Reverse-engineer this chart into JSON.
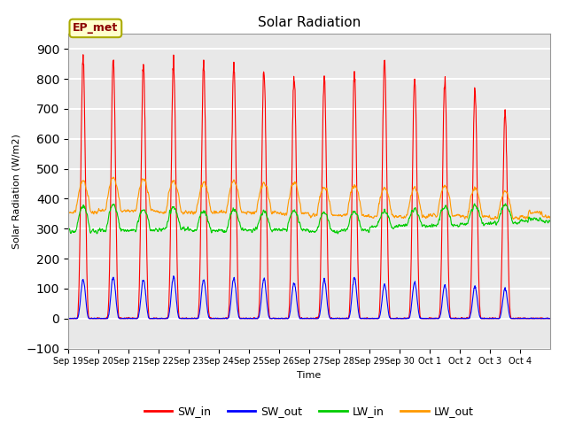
{
  "title": "Solar Radiation",
  "ylabel": "Solar Radiation (W/m2)",
  "xlabel": "Time",
  "ylim": [
    -100,
    950
  ],
  "yticks": [
    -100,
    0,
    100,
    200,
    300,
    400,
    500,
    600,
    700,
    800,
    900
  ],
  "background_color": "#e8e8e8",
  "grid_color": "white",
  "series_colors": {
    "SW_in": "#ff0000",
    "SW_out": "#0000ff",
    "LW_in": "#00cc00",
    "LW_out": "#ff9900"
  },
  "series_linewidth": 0.8,
  "legend_label": "EP_met",
  "x_tick_labels": [
    "Sep 19",
    "Sep 20",
    "Sep 21",
    "Sep 22",
    "Sep 23",
    "Sep 24",
    "Sep 25",
    "Sep 26",
    "Sep 27",
    "Sep 28",
    "Sep 29",
    "Sep 30",
    "Oct 1",
    "Oct 2",
    "Oct 3",
    "Oct 4"
  ],
  "num_days": 16,
  "hours_per_day": 24,
  "dt_hours": 0.25,
  "SW_in_peaks": [
    870,
    875,
    855,
    860,
    850,
    855,
    830,
    810,
    815,
    820,
    855,
    805,
    800,
    760,
    695,
    0
  ],
  "SW_out_peaks": [
    130,
    138,
    130,
    140,
    130,
    135,
    132,
    120,
    130,
    138,
    112,
    120,
    110,
    105,
    100,
    0
  ],
  "LW_in_base": [
    295,
    300,
    300,
    305,
    298,
    300,
    302,
    300,
    295,
    300,
    310,
    315,
    315,
    320,
    325,
    330
  ],
  "LW_in_day_amp": [
    80,
    80,
    65,
    65,
    60,
    65,
    55,
    60,
    55,
    55,
    50,
    50,
    60,
    60,
    55,
    0
  ],
  "LW_out_base": [
    370,
    375,
    375,
    370,
    368,
    370,
    368,
    365,
    360,
    360,
    355,
    355,
    360,
    355,
    350,
    355
  ],
  "LW_out_day_amp": [
    90,
    95,
    90,
    90,
    85,
    90,
    85,
    90,
    80,
    85,
    80,
    80,
    85,
    80,
    75,
    0
  ]
}
